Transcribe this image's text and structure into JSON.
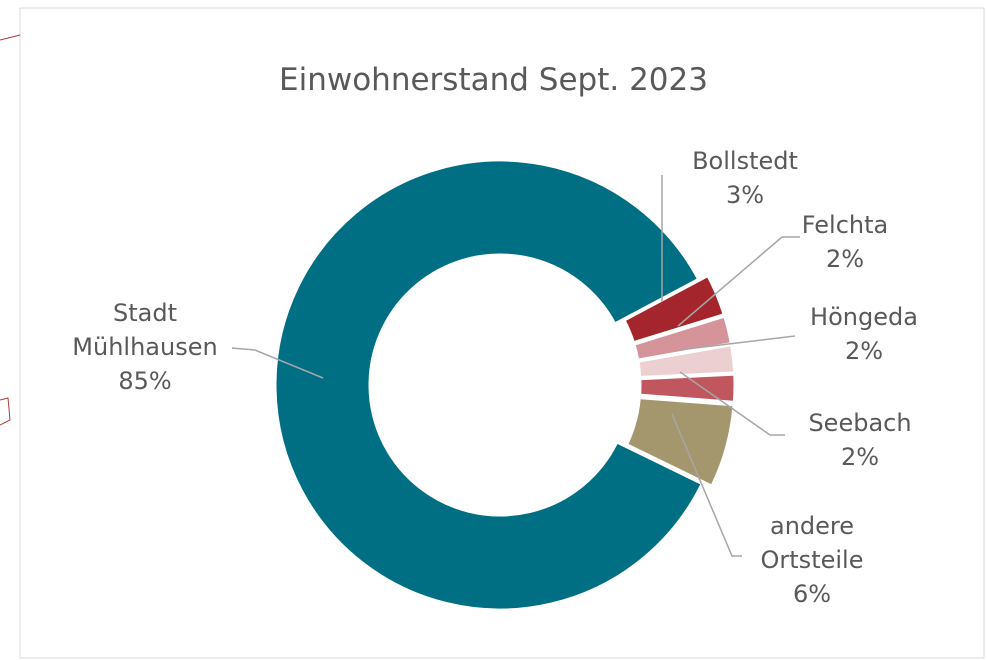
{
  "chart_data": {
    "type": "donut",
    "title": "Einwohnerstand Sept. 2023",
    "categories": [
      "Stadt Mühlhausen",
      "Bollstedt",
      "Felchta",
      "Höngeda",
      "Seebach",
      "andere Ortsteile"
    ],
    "values": [
      85,
      3,
      2,
      2,
      2,
      6
    ],
    "value_labels": [
      "85%",
      "3%",
      "2%",
      "2%",
      "2%",
      "6%"
    ],
    "colors": [
      "#006f84",
      "#a4262c",
      "#d4949a",
      "#ebcfd1",
      "#c0575e",
      "#a5976d"
    ]
  }
}
